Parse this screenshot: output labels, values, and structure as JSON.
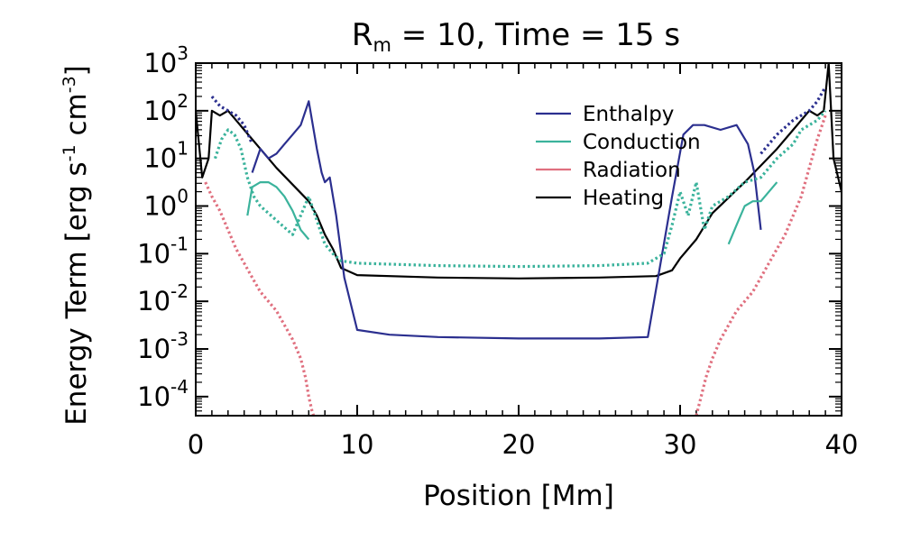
{
  "chart_data": {
    "type": "line",
    "title": {
      "prefix": "R",
      "sub": "m",
      "suffix": " = 10, Time = 15 s"
    },
    "xlabel": "Position [Mm]",
    "ylabel": {
      "prefix": "Energy Term [erg s",
      "sup1": "-1",
      "mid": " cm",
      "sup2": "-3",
      "suffix": "]"
    },
    "xlim": [
      0,
      40
    ],
    "ylim_log10": [
      -4.4,
      3
    ],
    "x_ticks": [
      {
        "v": 0,
        "label": "0"
      },
      {
        "v": 10,
        "label": "10"
      },
      {
        "v": 20,
        "label": "20"
      },
      {
        "v": 30,
        "label": "30"
      },
      {
        "v": 40,
        "label": "40"
      }
    ],
    "y_ticks": [
      {
        "v": 3,
        "label": "3"
      },
      {
        "v": 2,
        "label": "2"
      },
      {
        "v": 1,
        "label": "1"
      },
      {
        "v": 0,
        "label": "0"
      },
      {
        "v": -1,
        "label": "-1"
      },
      {
        "v": -2,
        "label": "-2"
      },
      {
        "v": -3,
        "label": "-3"
      },
      {
        "v": -4,
        "label": "-4"
      }
    ],
    "y_tick_base": "10",
    "legend": {
      "placement": "top-right",
      "entries": [
        {
          "name": "Enthalpy",
          "color": "#2b2f8f"
        },
        {
          "name": "Conduction",
          "color": "#3bb39c"
        },
        {
          "name": "Radiation",
          "color": "#e0707f"
        },
        {
          "name": "Heating",
          "color": "#000000"
        }
      ]
    },
    "note": "y values are log10 of energy term; solid = positive, dotted = negative magnitude",
    "series": [
      {
        "name": "Heating",
        "style": "solid",
        "color": "#000000",
        "x": [
          0,
          0.4,
          0.8,
          1.0,
          1.5,
          2.0,
          2.5,
          3.0,
          4.0,
          5.0,
          6.0,
          7.0,
          7.5,
          8.0,
          8.5,
          9.0,
          10.0,
          15.0,
          20.0,
          25.0,
          28.5,
          29.5,
          30.0,
          31.0,
          32.0,
          34.0,
          36.0,
          37.0,
          38.0,
          38.5,
          38.9,
          39.2,
          39.5,
          40.0
        ],
        "y": [
          2.0,
          0.6,
          1.0,
          2.0,
          1.9,
          2.0,
          1.8,
          1.6,
          1.2,
          0.8,
          0.45,
          0.1,
          -0.2,
          -0.6,
          -0.9,
          -1.3,
          -1.45,
          -1.5,
          -1.52,
          -1.5,
          -1.47,
          -1.35,
          -1.1,
          -0.7,
          -0.15,
          0.5,
          1.2,
          1.6,
          2.0,
          1.9,
          2.0,
          3.0,
          1.0,
          0.3
        ]
      },
      {
        "name": "Enthalpy",
        "style": "solid",
        "color": "#2b2f8f",
        "x": [
          3.5,
          4.0,
          4.5,
          5.0,
          5.5,
          6.0,
          6.5,
          7.0,
          7.2,
          7.5,
          7.8,
          8.0,
          8.3,
          8.7,
          9.2,
          10.0,
          12.0,
          15.0,
          20.0,
          25.0,
          28.0,
          29.5,
          30.2,
          30.8,
          31.5,
          32.5,
          33.5,
          34.2,
          34.6,
          35.0
        ],
        "y": [
          0.7,
          1.2,
          1.0,
          1.1,
          1.3,
          1.5,
          1.7,
          2.2,
          1.8,
          1.2,
          0.7,
          0.5,
          0.6,
          -0.2,
          -1.5,
          -2.6,
          -2.7,
          -2.75,
          -2.78,
          -2.78,
          -2.75,
          0.2,
          1.5,
          1.7,
          1.7,
          1.6,
          1.7,
          1.3,
          0.7,
          -0.5
        ]
      },
      {
        "name": "Conduction",
        "style": "solid",
        "color": "#3bb39c",
        "x": [
          3.2,
          3.5,
          4.0,
          4.5,
          5.0,
          5.5,
          6.0,
          6.5,
          7.0
        ],
        "y": [
          -0.2,
          0.4,
          0.5,
          0.5,
          0.4,
          0.2,
          -0.1,
          -0.5,
          -0.7
        ]
      },
      {
        "name": "Conduction",
        "style": "solid",
        "color": "#3bb39c",
        "x": [
          33.0,
          33.5,
          34.0,
          34.5,
          35.0,
          35.5,
          36.0
        ],
        "y": [
          -0.8,
          -0.4,
          0.0,
          0.1,
          0.1,
          0.3,
          0.5
        ]
      },
      {
        "name": "Enthalpy (negative)",
        "style": "dotted",
        "color": "#2b2f8f",
        "x": [
          1.0,
          1.5,
          2.0,
          2.5,
          3.0,
          3.5
        ],
        "y": [
          2.3,
          2.1,
          2.0,
          1.9,
          1.7,
          1.3
        ]
      },
      {
        "name": "Enthalpy (negative)",
        "style": "dotted",
        "color": "#2b2f8f",
        "x": [
          35.0,
          36.0,
          37.0,
          38.0,
          38.5,
          39.0
        ],
        "y": [
          1.1,
          1.5,
          1.8,
          2.0,
          2.2,
          2.5
        ]
      },
      {
        "name": "Conduction (negative)",
        "style": "dotted",
        "color": "#3bb39c",
        "x": [
          1.2,
          1.6,
          2.0,
          2.4,
          2.8,
          3.2,
          3.6,
          4.0,
          5.0,
          6.0,
          7.0,
          7.5,
          8.0,
          8.5,
          9.0,
          10.0,
          15.0,
          20.0,
          25.0,
          28.0,
          29.0,
          29.5,
          30.0,
          30.5,
          31.0,
          31.5,
          32.0,
          33.0,
          34.0,
          35.0,
          36.0,
          37.0,
          37.5,
          38.0,
          38.5,
          39.0
        ],
        "y": [
          1.0,
          1.4,
          1.6,
          1.5,
          1.2,
          0.6,
          0.2,
          0.0,
          -0.3,
          -0.6,
          0.2,
          -0.3,
          -0.8,
          -1.0,
          -1.15,
          -1.2,
          -1.25,
          -1.27,
          -1.25,
          -1.2,
          -1.0,
          -0.4,
          0.3,
          -0.2,
          0.5,
          -0.5,
          0.0,
          0.2,
          0.5,
          0.6,
          1.0,
          1.3,
          1.6,
          1.7,
          1.8,
          2.0
        ]
      },
      {
        "name": "Radiation (negative)",
        "style": "dotted",
        "color": "#e0707f",
        "x": [
          0.6,
          1.0,
          1.5,
          2.0,
          2.5,
          3.0,
          3.5,
          4.0,
          4.5,
          5.0,
          5.5,
          6.0,
          6.5,
          6.8,
          7.0,
          7.2,
          7.3
        ],
        "y": [
          0.5,
          0.2,
          -0.1,
          -0.5,
          -0.9,
          -1.2,
          -1.5,
          -1.8,
          -2.0,
          -2.2,
          -2.5,
          -2.8,
          -3.2,
          -3.6,
          -4.0,
          -4.3,
          -4.4
        ]
      },
      {
        "name": "Radiation (negative)",
        "style": "dotted",
        "color": "#e0707f",
        "x": [
          31.0,
          31.3,
          31.6,
          32.0,
          32.5,
          33.0,
          33.5,
          34.0,
          34.5,
          35.0,
          35.5,
          36.0,
          36.5,
          37.0,
          37.5,
          38.0,
          38.5,
          39.0
        ],
        "y": [
          -4.4,
          -4.0,
          -3.6,
          -3.2,
          -2.8,
          -2.5,
          -2.2,
          -2.0,
          -1.8,
          -1.5,
          -1.2,
          -0.9,
          -0.6,
          -0.2,
          0.2,
          0.8,
          1.4,
          1.9
        ]
      }
    ]
  }
}
